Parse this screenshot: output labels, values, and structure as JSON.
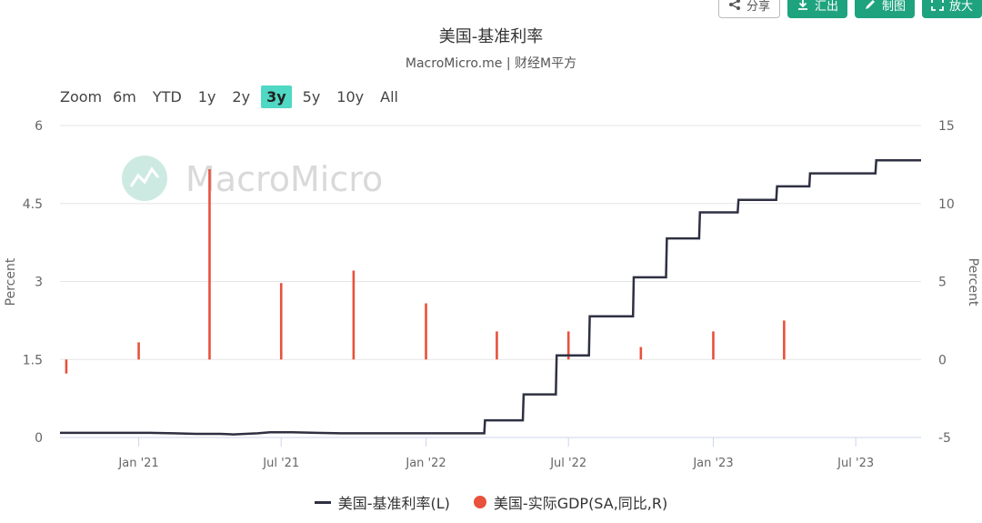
{
  "toolbar": {
    "share_label": "分享",
    "export_label": "汇出",
    "draw_label": "制图",
    "zoom_label": "放大",
    "accent_color": "#1fa37f"
  },
  "header": {
    "title": "美国-基准利率",
    "subtitle": "MacroMicro.me | 财经M平方"
  },
  "zoom": {
    "label": "Zoom",
    "options": [
      "6m",
      "YTD",
      "1y",
      "2y",
      "3y",
      "5y",
      "10y",
      "All"
    ],
    "active": "3y"
  },
  "watermark": "MacroMicro",
  "chart_data": {
    "type": "line",
    "title": "美国-基准利率",
    "x_ticks": [
      "Jan '21",
      "Jul '21",
      "Jan '22",
      "Jul '22",
      "Jan '23",
      "Jul '23"
    ],
    "x_tick_dates": [
      "2021-01-01",
      "2021-07-01",
      "2022-01-01",
      "2022-07-01",
      "2023-01-01",
      "2023-07-01"
    ],
    "x_range": [
      "2020-09-23",
      "2023-09-22"
    ],
    "y_left": {
      "label": "Percent",
      "ticks": [
        0,
        1.5,
        3,
        4.5,
        6
      ],
      "range": [
        0,
        6
      ]
    },
    "y_right": {
      "label": "Percent",
      "ticks": [
        -5,
        0,
        5,
        10,
        15
      ],
      "range": [
        -5,
        15
      ]
    },
    "grid": true,
    "legend_position": "bottom",
    "series": [
      {
        "name": "美国-基准利率(L)",
        "axis": "left",
        "kind": "step-line",
        "color": "#2e3042",
        "points": [
          [
            "2020-09-23",
            0.09
          ],
          [
            "2020-11-01",
            0.09
          ],
          [
            "2020-12-15",
            0.09
          ],
          [
            "2021-01-15",
            0.09
          ],
          [
            "2021-02-15",
            0.08
          ],
          [
            "2021-03-15",
            0.07
          ],
          [
            "2021-04-15",
            0.07
          ],
          [
            "2021-05-01",
            0.06
          ],
          [
            "2021-06-01",
            0.08
          ],
          [
            "2021-06-17",
            0.1
          ],
          [
            "2021-07-15",
            0.1
          ],
          [
            "2021-08-15",
            0.09
          ],
          [
            "2021-09-15",
            0.08
          ],
          [
            "2021-10-15",
            0.08
          ],
          [
            "2021-11-15",
            0.08
          ],
          [
            "2021-12-15",
            0.08
          ],
          [
            "2022-01-15",
            0.08
          ],
          [
            "2022-02-15",
            0.08
          ],
          [
            "2022-03-16",
            0.08
          ],
          [
            "2022-03-17",
            0.33
          ],
          [
            "2022-05-04",
            0.33
          ],
          [
            "2022-05-05",
            0.83
          ],
          [
            "2022-06-15",
            0.83
          ],
          [
            "2022-06-16",
            1.58
          ],
          [
            "2022-07-27",
            1.58
          ],
          [
            "2022-07-28",
            2.33
          ],
          [
            "2022-09-21",
            2.33
          ],
          [
            "2022-09-22",
            3.08
          ],
          [
            "2022-11-02",
            3.08
          ],
          [
            "2022-11-03",
            3.83
          ],
          [
            "2022-12-14",
            3.83
          ],
          [
            "2022-12-15",
            4.33
          ],
          [
            "2023-02-01",
            4.33
          ],
          [
            "2023-02-02",
            4.57
          ],
          [
            "2023-03-22",
            4.57
          ],
          [
            "2023-03-23",
            4.83
          ],
          [
            "2023-05-03",
            4.83
          ],
          [
            "2023-05-04",
            5.08
          ],
          [
            "2023-07-26",
            5.08
          ],
          [
            "2023-07-27",
            5.33
          ],
          [
            "2023-09-22",
            5.33
          ]
        ]
      },
      {
        "name": "美国-实际GDP(SA,同比,R)",
        "axis": "right",
        "kind": "column",
        "color": "#e8513b",
        "points": [
          [
            "2020-10-01",
            -0.9
          ],
          [
            "2021-01-01",
            1.1
          ],
          [
            "2021-04-01",
            12.2
          ],
          [
            "2021-07-01",
            4.9
          ],
          [
            "2021-10-01",
            5.7
          ],
          [
            "2022-01-01",
            3.6
          ],
          [
            "2022-04-01",
            1.8
          ],
          [
            "2022-07-01",
            1.8
          ],
          [
            "2022-10-01",
            0.8
          ],
          [
            "2023-01-01",
            1.8
          ],
          [
            "2023-04-01",
            2.5
          ]
        ]
      }
    ]
  }
}
